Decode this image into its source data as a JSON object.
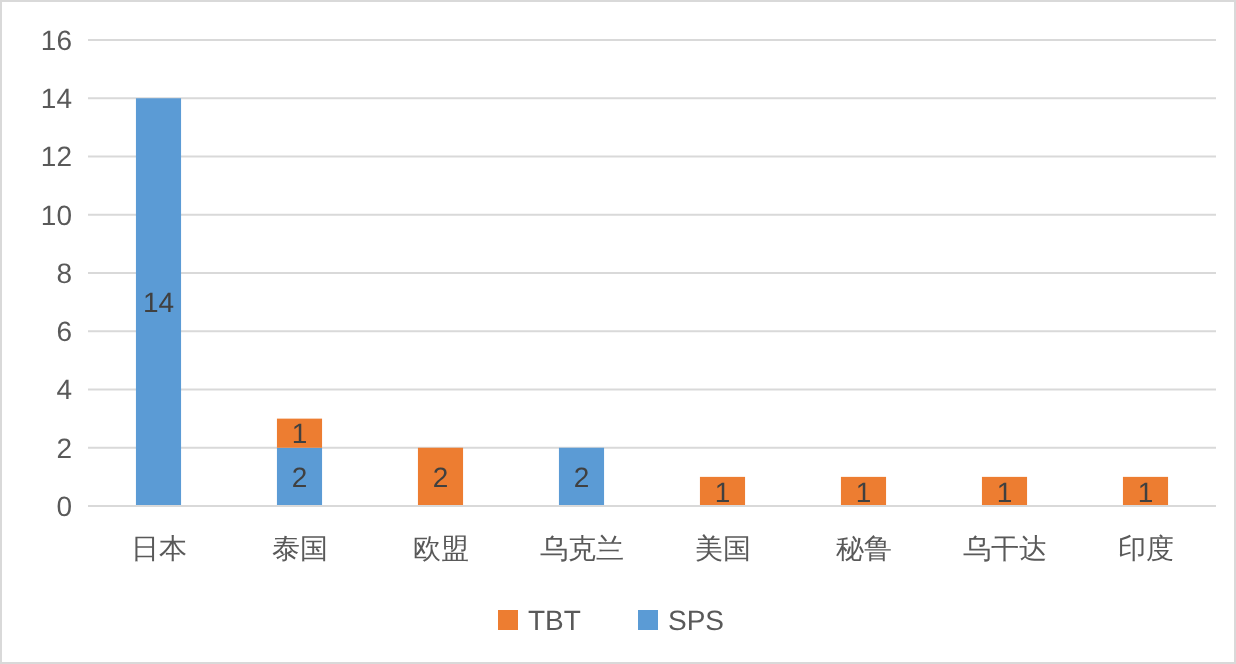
{
  "chart_data": {
    "type": "bar",
    "stacked": true,
    "categories": [
      "日本",
      "泰国",
      "欧盟",
      "乌克兰",
      "美国",
      "秘鲁",
      "乌干达",
      "印度"
    ],
    "series": [
      {
        "name": "SPS",
        "color": "#5b9bd5",
        "values": [
          14,
          2,
          null,
          2,
          null,
          null,
          null,
          null
        ]
      },
      {
        "name": "TBT",
        "color": "#ed7d31",
        "values": [
          null,
          1,
          2,
          null,
          1,
          1,
          1,
          1
        ]
      }
    ],
    "ylim": [
      0,
      16
    ],
    "yticks": [
      0,
      2,
      4,
      6,
      8,
      10,
      12,
      14,
      16
    ],
    "grid": "y",
    "legend": "bottom",
    "data_labels": true
  }
}
